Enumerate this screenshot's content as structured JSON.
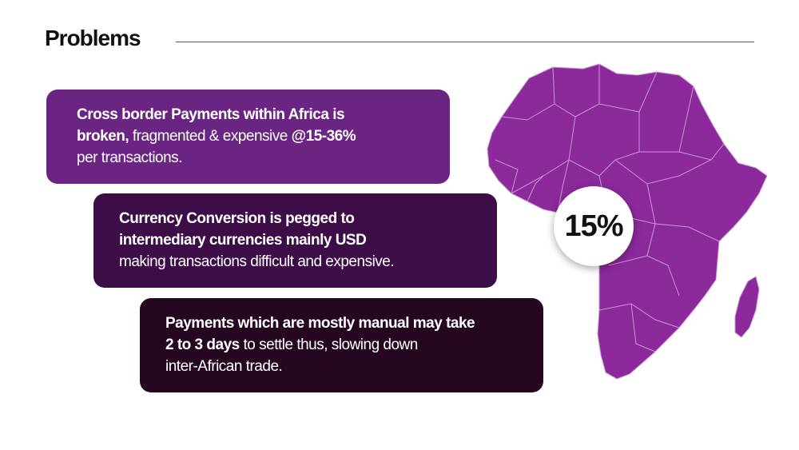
{
  "slide": {
    "title": "Problems"
  },
  "cards": [
    {
      "line1": "Cross border Payments within Africa is",
      "line2_bold": "broken,",
      "line2_rest": " fragmented & expensive ",
      "line2_bold2": "@15-36%",
      "line3": "per transactions."
    },
    {
      "line1": "Currency Conversion is pegged to",
      "line2": "intermediary currencies mainly USD",
      "line3": "making transactions difficult and expensive."
    },
    {
      "line1": "Payments which are mostly manual may take",
      "line2_bold": "2 to 3 days",
      "line2_rest": " to settle thus, slowing down",
      "line3": "inter-African trade."
    }
  ],
  "badge": {
    "value": "15%"
  },
  "colors": {
    "map_fill": "#8c2a9c",
    "card1": "#6a2583",
    "card2": "#3d0d47",
    "card3": "#25071f"
  }
}
